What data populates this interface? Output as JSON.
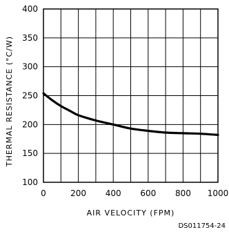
{
  "chart_data": {
    "type": "line",
    "xlabel": "AIR VELOCITY (FPM)",
    "ylabel": "THERMAL RESISTANCE (°C/W)",
    "xlim": [
      0,
      1000
    ],
    "ylim": [
      100,
      400
    ],
    "x_ticks": [
      0,
      200,
      400,
      600,
      800,
      1000
    ],
    "y_ticks": [
      100,
      150,
      200,
      250,
      300,
      350,
      400
    ],
    "x_grid_step": 100,
    "y_grid_step": 50,
    "grid": true,
    "series": [
      {
        "x": [
          0,
          50,
          100,
          150,
          200,
          300,
          400,
          500,
          600,
          700,
          800,
          900,
          1000
        ],
        "y": [
          254,
          242,
          232,
          224,
          216,
          207,
          200,
          193,
          189,
          186,
          185,
          184,
          182
        ]
      }
    ]
  },
  "figure_code": "DS011754-24"
}
